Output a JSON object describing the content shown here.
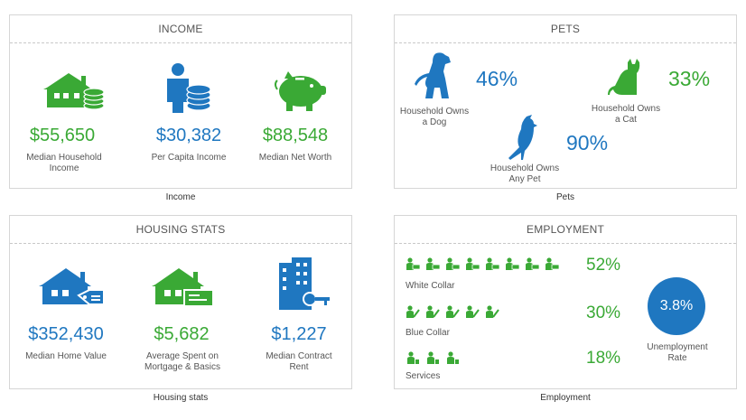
{
  "income": {
    "title": "INCOME",
    "caption": "Income",
    "stats": [
      {
        "value": "$55,650",
        "label": "Median Household Income"
      },
      {
        "value": "$30,382",
        "label": "Per Capita Income"
      },
      {
        "value": "$88,548",
        "label": "Median Net Worth"
      }
    ]
  },
  "pets": {
    "title": "PETS",
    "caption": "Pets",
    "dog": {
      "value": "46%",
      "label": "Household Owns a Dog"
    },
    "cat": {
      "value": "33%",
      "label": "Household Owns a Cat"
    },
    "any": {
      "value": "90%",
      "label": "Household Owns Any Pet"
    }
  },
  "housing": {
    "title": "HOUSING STATS",
    "caption": "Housing stats",
    "stats": [
      {
        "value": "$352,430",
        "label": "Median Home Value"
      },
      {
        "value": "$5,682",
        "label": "Average Spent on Mortgage & Basics"
      },
      {
        "value": "$1,227",
        "label": "Median Contract Rent"
      }
    ]
  },
  "employment": {
    "title": "EMPLOYMENT",
    "caption": "Employment",
    "rows": [
      {
        "label": "White Collar",
        "value": "52%",
        "icons": 8
      },
      {
        "label": "Blue Collar",
        "value": "30%",
        "icons": 5
      },
      {
        "label": "Services",
        "value": "18%",
        "icons": 3
      }
    ],
    "unemployment": {
      "value": "3.8%",
      "label": "Unemployment Rate"
    }
  },
  "colors": {
    "green": "#3aa935",
    "blue": "#1f77c0"
  },
  "icons": [
    "house-coins-icon",
    "person-coins-icon",
    "piggy-bank-icon",
    "dog-icon",
    "cat-icon",
    "bird-icon",
    "house-tag-icon",
    "house-check-icon",
    "building-key-icon",
    "white-collar-worker-icon",
    "blue-collar-worker-icon",
    "service-worker-icon"
  ]
}
